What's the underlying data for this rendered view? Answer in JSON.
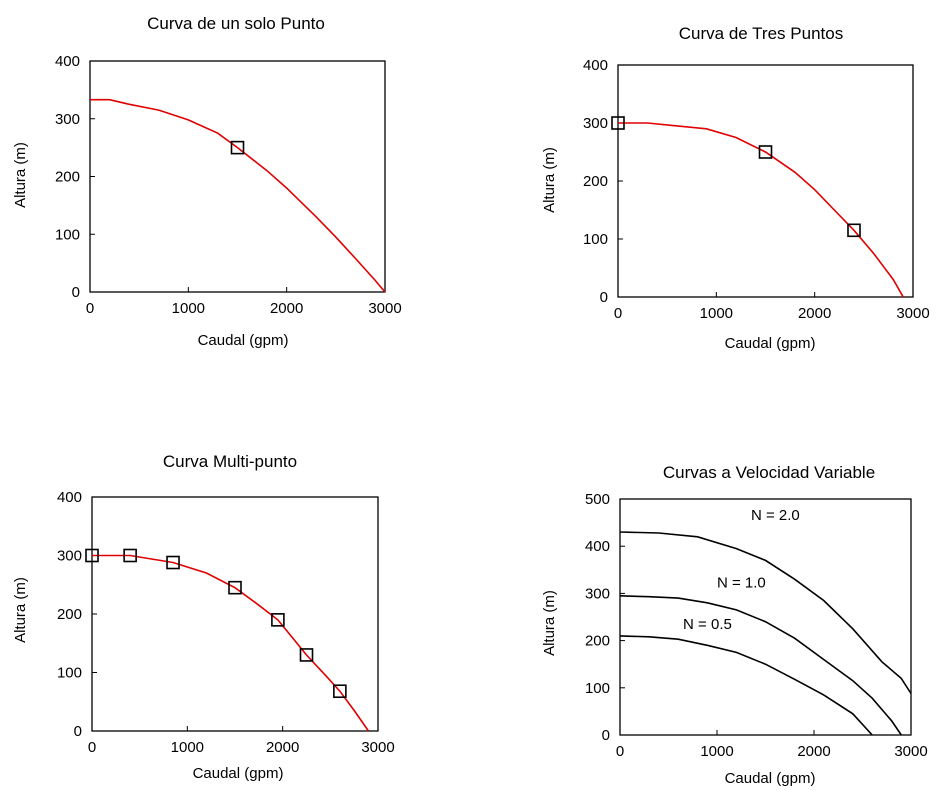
{
  "chart_data": [
    {
      "type": "line",
      "title": "Curva de un solo Punto",
      "xlabel": "Caudal (gpm)",
      "ylabel": "Altura (m)",
      "xlim": [
        0,
        3000
      ],
      "ylim": [
        0,
        400
      ],
      "xticks": [
        "0",
        "1000",
        "2000",
        "3000"
      ],
      "yticks": [
        "0",
        "100",
        "200",
        "300",
        "400"
      ],
      "grid": false,
      "line_color": "#e00000",
      "series": [
        {
          "x": [
            0,
            200,
            400,
            700,
            1000,
            1300,
            1500,
            1800,
            2000,
            2300,
            2500,
            2700,
            2900,
            3000
          ],
          "y": [
            333,
            333,
            325,
            315,
            298,
            275,
            250,
            210,
            180,
            130,
            95,
            58,
            20,
            0
          ]
        }
      ],
      "markers": {
        "x": [
          1500
        ],
        "y": [
          250
        ]
      }
    },
    {
      "type": "line",
      "title": "Curva de Tres Puntos",
      "xlabel": "Caudal (gpm)",
      "ylabel": "Altura (m)",
      "xlim": [
        0,
        3000
      ],
      "ylim": [
        0,
        400
      ],
      "xticks": [
        "0",
        "1000",
        "2000",
        "3000"
      ],
      "yticks": [
        "0",
        "100",
        "200",
        "300",
        "400"
      ],
      "grid": false,
      "line_color": "#e00000",
      "series": [
        {
          "x": [
            0,
            300,
            600,
            900,
            1200,
            1500,
            1800,
            2000,
            2200,
            2400,
            2600,
            2800,
            2900
          ],
          "y": [
            300,
            300,
            295,
            290,
            275,
            250,
            215,
            185,
            150,
            115,
            75,
            30,
            0
          ]
        }
      ],
      "markers": {
        "x": [
          0,
          1500,
          2400
        ],
        "y": [
          300,
          250,
          115
        ]
      }
    },
    {
      "type": "line",
      "title": "Curva Multi-punto",
      "xlabel": "Caudal (gpm)",
      "ylabel": "Altura (m)",
      "xlim": [
        0,
        3000
      ],
      "ylim": [
        0,
        400
      ],
      "xticks": [
        "0",
        "1000",
        "2000",
        "3000"
      ],
      "yticks": [
        "0",
        "100",
        "200",
        "300",
        "400"
      ],
      "grid": false,
      "line_color": "#e00000",
      "series": [
        {
          "x": [
            0,
            400,
            850,
            1200,
            1500,
            1750,
            1950,
            2100,
            2250,
            2450,
            2600,
            2750,
            2900
          ],
          "y": [
            300,
            300,
            288,
            270,
            245,
            215,
            190,
            160,
            130,
            95,
            68,
            35,
            0
          ]
        }
      ],
      "markers": {
        "x": [
          0,
          400,
          850,
          1500,
          1950,
          2250,
          2600
        ],
        "y": [
          300,
          300,
          288,
          245,
          190,
          130,
          68
        ]
      }
    },
    {
      "type": "line",
      "title": "Curvas a Velocidad Variable",
      "xlabel": "Caudal (gpm)",
      "ylabel": "Altura (m)",
      "xlim": [
        0,
        3000
      ],
      "ylim": [
        0,
        500
      ],
      "xticks": [
        "0",
        "1000",
        "2000",
        "3000"
      ],
      "yticks": [
        "0",
        "100",
        "200",
        "300",
        "400",
        "500"
      ],
      "grid": false,
      "line_color": "#000000",
      "series": [
        {
          "name": "N = 2.0",
          "x": [
            0,
            400,
            800,
            1200,
            1500,
            1800,
            2100,
            2400,
            2700,
            2900,
            3000
          ],
          "y": [
            430,
            428,
            420,
            395,
            370,
            330,
            285,
            225,
            155,
            120,
            88
          ]
        },
        {
          "name": "N = 1.0",
          "x": [
            0,
            300,
            600,
            900,
            1200,
            1500,
            1800,
            2100,
            2400,
            2600,
            2800,
            2900
          ],
          "y": [
            295,
            293,
            290,
            280,
            265,
            240,
            205,
            160,
            115,
            78,
            30,
            0
          ]
        },
        {
          "name": "N = 0.5",
          "x": [
            0,
            300,
            600,
            900,
            1200,
            1500,
            1800,
            2100,
            2400,
            2600
          ],
          "y": [
            210,
            208,
            203,
            190,
            175,
            150,
            118,
            85,
            45,
            0
          ]
        }
      ],
      "annotations": [
        {
          "text": "N = 2.0",
          "x": 1350,
          "y": 455
        },
        {
          "text": "N = 1.0",
          "x": 1000,
          "y": 312
        },
        {
          "text": "N = 0.5",
          "x": 650,
          "y": 225
        }
      ]
    }
  ]
}
